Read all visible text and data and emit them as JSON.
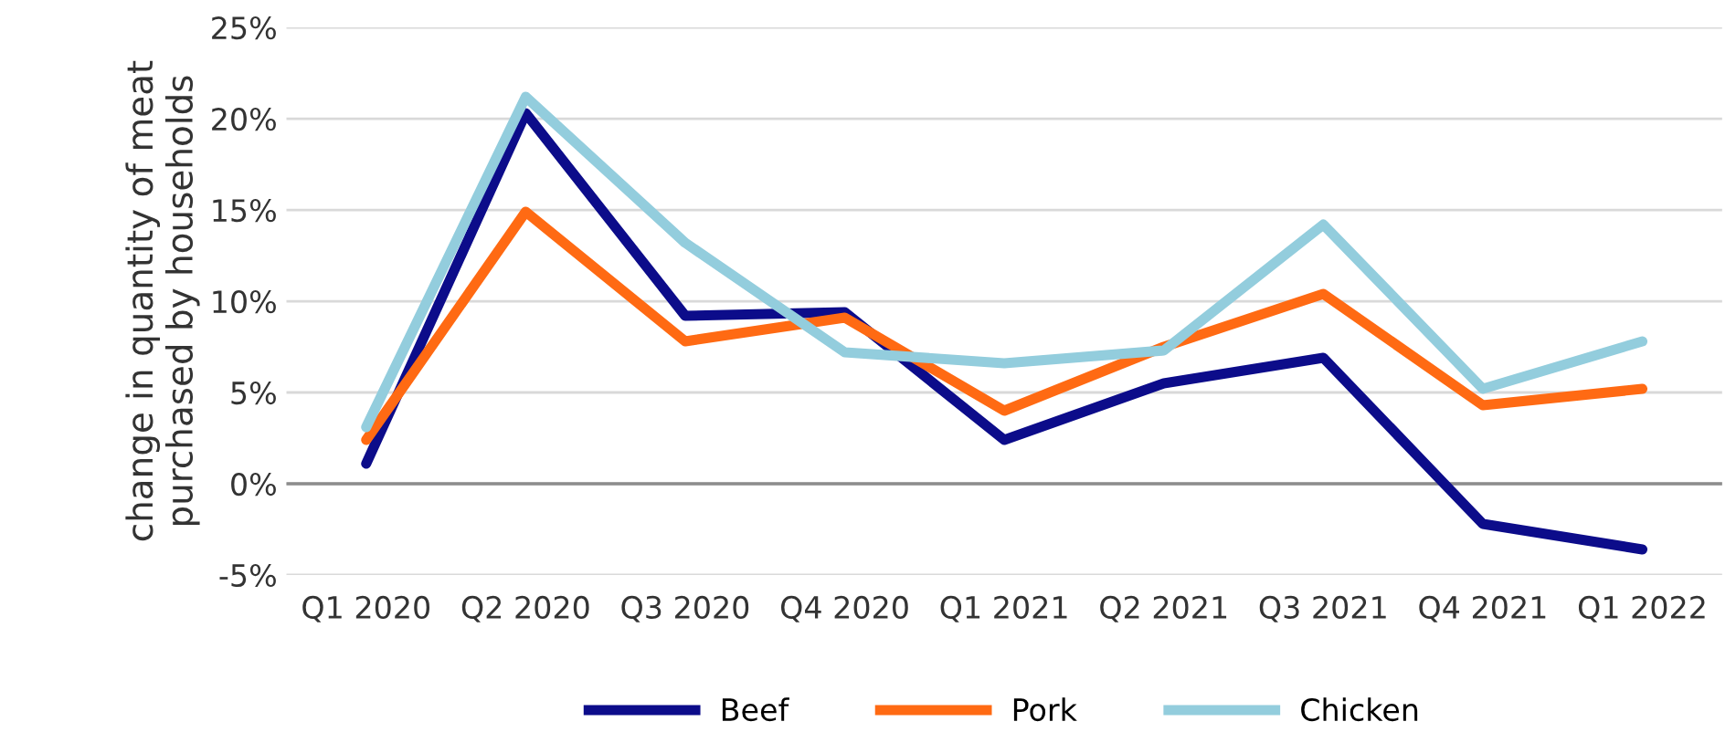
{
  "chart_data": {
    "type": "line",
    "ylabel": "change in quantity of meat\npurchased by households",
    "categories": [
      "Q1 2020",
      "Q2 2020",
      "Q3 2020",
      "Q4 2020",
      "Q1 2021",
      "Q2 2021",
      "Q3 2021",
      "Q4 2021",
      "Q1 2022"
    ],
    "series": [
      {
        "name": "Beef",
        "color": "#0c0c8a",
        "values": [
          1.1,
          20.3,
          9.2,
          9.4,
          2.4,
          5.5,
          6.9,
          -2.2,
          -3.6
        ]
      },
      {
        "name": "Pork",
        "color": "#ff6a13",
        "values": [
          2.4,
          14.9,
          7.8,
          9.1,
          4.0,
          7.5,
          10.4,
          4.3,
          5.2
        ]
      },
      {
        "name": "Chicken",
        "color": "#93cddd",
        "values": [
          3.1,
          21.2,
          13.2,
          7.2,
          6.6,
          7.3,
          14.2,
          5.2,
          7.8
        ]
      }
    ],
    "ylim": [
      -5,
      25
    ],
    "yticks": [
      {
        "value": -5,
        "label": "-5%"
      },
      {
        "value": 0,
        "label": "0%"
      },
      {
        "value": 5,
        "label": "5%"
      },
      {
        "value": 10,
        "label": "10%"
      },
      {
        "value": 15,
        "label": "15%"
      },
      {
        "value": 20,
        "label": "20%"
      },
      {
        "value": 25,
        "label": "25%"
      }
    ],
    "ref_lines": [
      {
        "axis": "y",
        "value": 0,
        "color": "#8c8c8c"
      }
    ],
    "grid": "y",
    "legend": "bottom",
    "marker": "none",
    "line_style": "solid"
  }
}
